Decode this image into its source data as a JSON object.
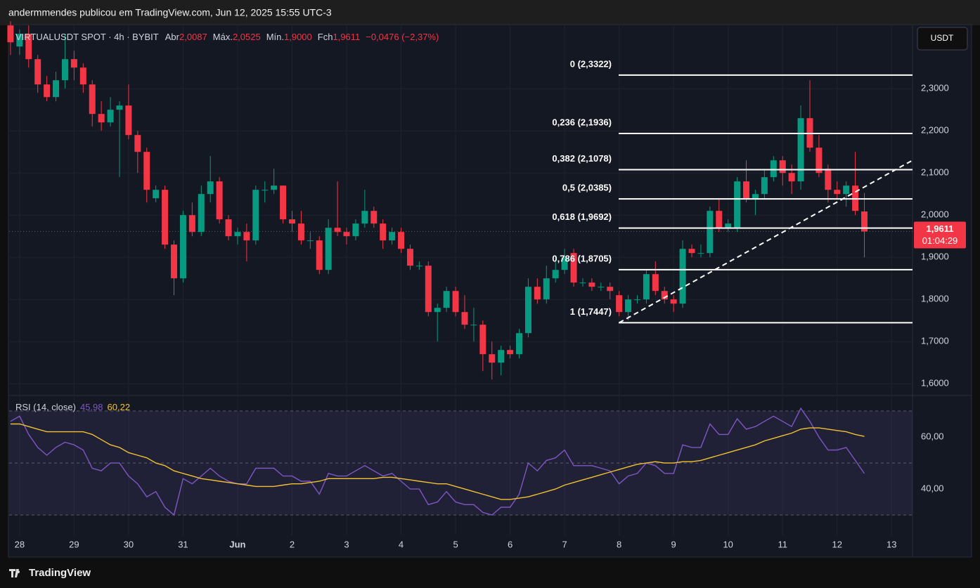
{
  "header": {
    "text": "andermmendes publicou em TradingView.com, Jun 12, 2025 15:55 UTC-3"
  },
  "footer": {
    "brand": "TradingView"
  },
  "chart_data": [
    {
      "type": "candlestick",
      "symbol": "VIRTUALUSDT SPOT · 4h · BYBIT",
      "ohlc_legend": [
        {
          "label": "Abr",
          "value": "2,0087"
        },
        {
          "label": "Máx.",
          "value": "2,0525"
        },
        {
          "label": "Mín.",
          "value": "1,9000"
        },
        {
          "label": "Fch",
          "value": "1,9611"
        }
      ],
      "change": "−0,0476 (−2,37%)",
      "currency": "USDT",
      "last_price_label": "1,9611",
      "countdown": "01:04:29",
      "up_color": "#089981",
      "down_color": "#f23645",
      "candles": [
        [
          2.45,
          2.46,
          2.38,
          2.41
        ],
        [
          2.4,
          2.44,
          2.38,
          2.43
        ],
        [
          2.43,
          2.45,
          2.35,
          2.37
        ],
        [
          2.37,
          2.38,
          2.29,
          2.31
        ],
        [
          2.31,
          2.33,
          2.27,
          2.28
        ],
        [
          2.28,
          2.34,
          2.27,
          2.32
        ],
        [
          2.32,
          2.43,
          2.3,
          2.37
        ],
        [
          2.37,
          2.39,
          2.32,
          2.35
        ],
        [
          2.35,
          2.36,
          2.29,
          2.31
        ],
        [
          2.31,
          2.32,
          2.21,
          2.24
        ],
        [
          2.24,
          2.27,
          2.2,
          2.22
        ],
        [
          2.22,
          2.28,
          2.21,
          2.25
        ],
        [
          2.25,
          2.27,
          2.09,
          2.26
        ],
        [
          2.26,
          2.31,
          2.18,
          2.19
        ],
        [
          2.19,
          2.2,
          2.1,
          2.15
        ],
        [
          2.15,
          2.16,
          2.03,
          2.06
        ],
        [
          2.04,
          2.07,
          2.03,
          2.06
        ],
        [
          2.06,
          2.07,
          1.92,
          1.93
        ],
        [
          1.93,
          1.94,
          1.81,
          1.85
        ],
        [
          1.85,
          2.01,
          1.84,
          2.0
        ],
        [
          2.0,
          2.03,
          1.95,
          1.96
        ],
        [
          1.96,
          2.07,
          1.95,
          2.05
        ],
        [
          2.05,
          2.14,
          2.03,
          2.08
        ],
        [
          2.08,
          2.09,
          1.98,
          1.99
        ],
        [
          1.99,
          2.0,
          1.94,
          1.95
        ],
        [
          1.95,
          1.97,
          1.93,
          1.96
        ],
        [
          1.96,
          1.98,
          1.89,
          1.94
        ],
        [
          1.94,
          2.07,
          1.93,
          2.06
        ],
        [
          2.06,
          2.08,
          2.03,
          2.06
        ],
        [
          2.06,
          2.11,
          2.05,
          2.07
        ],
        [
          2.07,
          2.07,
          1.98,
          1.99
        ],
        [
          1.99,
          2.01,
          1.96,
          1.98
        ],
        [
          1.98,
          2.01,
          1.93,
          1.94
        ],
        [
          1.94,
          1.96,
          1.92,
          1.94
        ],
        [
          1.94,
          1.95,
          1.86,
          1.87
        ],
        [
          1.87,
          1.99,
          1.86,
          1.97
        ],
        [
          1.97,
          2.08,
          1.95,
          1.96
        ],
        [
          1.96,
          1.97,
          1.93,
          1.95
        ],
        [
          1.95,
          1.99,
          1.94,
          1.98
        ],
        [
          1.98,
          2.06,
          1.97,
          2.01
        ],
        [
          2.01,
          2.02,
          1.97,
          1.98
        ],
        [
          1.98,
          1.99,
          1.92,
          1.94
        ],
        [
          1.94,
          1.97,
          1.93,
          1.96
        ],
        [
          1.96,
          1.97,
          1.91,
          1.92
        ],
        [
          1.92,
          1.93,
          1.87,
          1.88
        ],
        [
          1.88,
          1.89,
          1.87,
          1.88
        ],
        [
          1.88,
          1.89,
          1.76,
          1.77
        ],
        [
          1.77,
          1.79,
          1.7,
          1.78
        ],
        [
          1.78,
          1.83,
          1.77,
          1.82
        ],
        [
          1.82,
          1.83,
          1.76,
          1.77
        ],
        [
          1.77,
          1.81,
          1.73,
          1.74
        ],
        [
          1.74,
          1.78,
          1.7,
          1.74
        ],
        [
          1.74,
          1.75,
          1.63,
          1.67
        ],
        [
          1.67,
          1.7,
          1.61,
          1.65
        ],
        [
          1.65,
          1.69,
          1.62,
          1.68
        ],
        [
          1.68,
          1.69,
          1.66,
          1.67
        ],
        [
          1.67,
          1.73,
          1.66,
          1.72
        ],
        [
          1.72,
          1.85,
          1.71,
          1.83
        ],
        [
          1.83,
          1.85,
          1.79,
          1.8
        ],
        [
          1.8,
          1.88,
          1.79,
          1.85
        ],
        [
          1.85,
          1.9,
          1.84,
          1.87
        ],
        [
          1.87,
          1.92,
          1.86,
          1.9
        ],
        [
          1.91,
          1.92,
          1.83,
          1.84
        ],
        [
          1.84,
          1.85,
          1.83,
          1.84
        ],
        [
          1.84,
          1.85,
          1.82,
          1.83
        ],
        [
          1.83,
          1.84,
          1.82,
          1.83
        ],
        [
          1.83,
          1.84,
          1.8,
          1.82
        ],
        [
          1.81,
          1.82,
          1.76,
          1.77
        ],
        [
          1.77,
          1.81,
          1.75,
          1.8
        ],
        [
          1.8,
          1.81,
          1.79,
          1.8
        ],
        [
          1.8,
          1.87,
          1.79,
          1.86
        ],
        [
          1.86,
          1.89,
          1.81,
          1.82
        ],
        [
          1.82,
          1.83,
          1.79,
          1.8
        ],
        [
          1.8,
          1.81,
          1.77,
          1.79
        ],
        [
          1.79,
          1.94,
          1.78,
          1.92
        ],
        [
          1.92,
          1.93,
          1.9,
          1.91
        ],
        [
          1.91,
          1.93,
          1.9,
          1.91
        ],
        [
          1.91,
          2.02,
          1.9,
          2.01
        ],
        [
          2.01,
          2.04,
          1.96,
          1.97
        ],
        [
          1.97,
          1.99,
          1.96,
          1.98
        ],
        [
          1.97,
          2.09,
          1.96,
          2.08
        ],
        [
          2.08,
          2.13,
          2.03,
          2.04
        ],
        [
          2.04,
          2.06,
          2.0,
          2.05
        ],
        [
          2.05,
          2.11,
          2.04,
          2.09
        ],
        [
          2.09,
          2.14,
          2.08,
          2.13
        ],
        [
          2.13,
          2.14,
          2.07,
          2.1
        ],
        [
          2.1,
          2.12,
          2.05,
          2.08
        ],
        [
          2.08,
          2.26,
          2.06,
          2.23
        ],
        [
          2.23,
          2.32,
          2.15,
          2.16
        ],
        [
          2.16,
          2.19,
          2.09,
          2.1
        ],
        [
          2.11,
          2.12,
          2.03,
          2.06
        ],
        [
          2.06,
          2.08,
          2.04,
          2.05
        ],
        [
          2.05,
          2.08,
          2.02,
          2.07
        ],
        [
          2.07,
          2.15,
          2.0,
          2.01
        ],
        [
          2.0087,
          2.0525,
          1.9,
          1.9611
        ]
      ],
      "xlim": [
        -0.15,
        99.3
      ],
      "xticks": [
        {
          "value": 1,
          "label": "28"
        },
        {
          "value": 7,
          "label": "29"
        },
        {
          "value": 13,
          "label": "30"
        },
        {
          "value": 19,
          "label": "31"
        },
        {
          "value": 25,
          "label": "Jun"
        },
        {
          "value": 31,
          "label": "2"
        },
        {
          "value": 37,
          "label": "3"
        },
        {
          "value": 43,
          "label": "4"
        },
        {
          "value": 49,
          "label": "5"
        },
        {
          "value": 55,
          "label": "6"
        },
        {
          "value": 61,
          "label": "7"
        },
        {
          "value": 67,
          "label": "8"
        },
        {
          "value": 73,
          "label": "9"
        },
        {
          "value": 79,
          "label": "10"
        },
        {
          "value": 85,
          "label": "11"
        },
        {
          "value": 91,
          "label": "12"
        },
        {
          "value": 97,
          "label": "13"
        }
      ],
      "ylim": [
        1.577,
        2.452
      ],
      "yticks": [
        {
          "value": 1.6,
          "label": "1,6000"
        },
        {
          "value": 1.7,
          "label": "1,7000"
        },
        {
          "value": 1.8,
          "label": "1,8000"
        },
        {
          "value": 1.9,
          "label": "1,9000"
        },
        {
          "value": 2.0,
          "label": "2,0000"
        },
        {
          "value": 2.1,
          "label": "2,1000"
        },
        {
          "value": 2.2,
          "label": "2,2000"
        },
        {
          "value": 2.3,
          "label": "2,3000"
        }
      ],
      "grid": true,
      "fib_levels": [
        {
          "value": 2.3322,
          "label": "0 (2,3322)"
        },
        {
          "value": 2.1936,
          "label": "0,236 (2,1936)"
        },
        {
          "value": 2.1078,
          "label": "0,382 (2,1078)"
        },
        {
          "value": 2.0385,
          "label": "0,5 (2,0385)"
        },
        {
          "value": 1.9692,
          "label": "0,618 (1,9692)"
        },
        {
          "value": 1.8705,
          "label": "0,786 (1,8705)"
        },
        {
          "value": 1.7447,
          "label": "1 (1,7447)"
        }
      ],
      "trendline": [
        [
          67,
          1.7447
        ],
        [
          99.3,
          2.13
        ]
      ]
    },
    {
      "type": "line",
      "title": "RSI (14, close)",
      "series": [
        {
          "color": "#7e57c2",
          "value_label": "45,98",
          "values": [
            66,
            68,
            61,
            56,
            53,
            56,
            58,
            57,
            55,
            48,
            47,
            50,
            50,
            45,
            42,
            37,
            39,
            33,
            30,
            44,
            42,
            45,
            48,
            45,
            43,
            42,
            42,
            48,
            48,
            48,
            45,
            45,
            43,
            43,
            38,
            46,
            45,
            45,
            47,
            49,
            47,
            45,
            46,
            43,
            40,
            40,
            34,
            35,
            39,
            35,
            34,
            34,
            31,
            30,
            33,
            33,
            38,
            50,
            47,
            51,
            52,
            55,
            49,
            49,
            49,
            48,
            47,
            42,
            45,
            46,
            50,
            49,
            46,
            46,
            57,
            56,
            56,
            65,
            61,
            61,
            67,
            63,
            64,
            66,
            68,
            66,
            64,
            71,
            66,
            60,
            55,
            55,
            56,
            51,
            45.98
          ]
        },
        {
          "color": "#f2c230",
          "value_label": "60,22",
          "values": [
            65,
            65,
            64,
            63,
            62,
            62,
            62,
            62,
            62,
            61,
            59,
            57,
            56,
            54,
            53,
            52,
            50,
            49,
            47,
            46,
            45,
            44,
            43.5,
            43,
            42.5,
            42,
            41.5,
            41,
            41,
            41,
            41.5,
            42,
            42,
            42.5,
            43,
            44,
            44,
            44,
            44,
            44,
            44,
            44.5,
            44.5,
            44,
            43.5,
            43,
            42.5,
            42,
            42,
            41,
            40,
            39,
            38,
            37,
            36,
            36,
            36.5,
            37,
            38,
            39,
            40,
            41.5,
            42.5,
            43.5,
            44.5,
            45.5,
            46.5,
            47.5,
            48.5,
            49.5,
            50,
            50.5,
            50,
            50,
            50.5,
            50.5,
            51,
            52,
            53,
            54,
            55,
            56,
            57,
            58.5,
            59.5,
            60.5,
            61.5,
            63,
            63.5,
            63.5,
            63,
            62.5,
            62,
            61,
            60.22
          ]
        }
      ],
      "xlim": [
        -0.15,
        99.3
      ],
      "ylim": [
        22.2,
        74.6
      ],
      "yticks": [
        {
          "value": 60,
          "label": "60,00"
        },
        {
          "value": 40,
          "label": "40,00"
        }
      ],
      "bands": [
        70,
        50,
        30
      ]
    }
  ]
}
